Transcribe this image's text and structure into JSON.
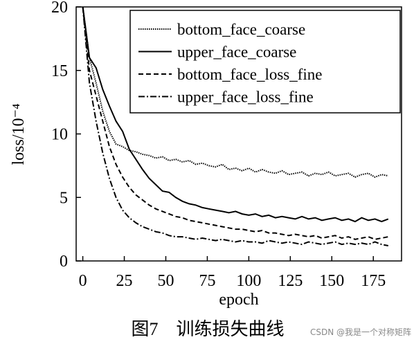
{
  "chart_data": {
    "type": "line",
    "x_label": "epoch",
    "y_label": "loss/10⁻⁴",
    "caption": "图7　训练损失曲线",
    "watermark": "CSDN @我是一个对称矩阵",
    "x": [
      0,
      4,
      8,
      12,
      16,
      20,
      24,
      28,
      32,
      36,
      40,
      44,
      48,
      52,
      56,
      60,
      64,
      68,
      72,
      76,
      80,
      84,
      88,
      92,
      96,
      100,
      104,
      108,
      112,
      116,
      120,
      124,
      128,
      132,
      136,
      140,
      144,
      148,
      152,
      156,
      160,
      164,
      168,
      172,
      176,
      180,
      184
    ],
    "series": [
      {
        "name": "bottom_face_coarse",
        "color": "#000000",
        "linestyle": "dotted",
        "values": [
          20,
          16,
          14,
          11.8,
          10.2,
          9.2,
          9.0,
          8.7,
          8.6,
          8.4,
          8.3,
          8.1,
          8.2,
          7.9,
          8.0,
          7.8,
          7.9,
          7.6,
          7.7,
          7.5,
          7.4,
          7.6,
          7.2,
          7.3,
          7.1,
          7.3,
          7.0,
          7.2,
          7.0,
          6.9,
          7.1,
          6.8,
          6.9,
          7.0,
          6.7,
          6.9,
          6.8,
          7.0,
          6.7,
          6.8,
          6.9,
          6.6,
          6.8,
          6.9,
          6.6,
          6.8,
          6.7
        ]
      },
      {
        "name": "upper_face_coarse",
        "color": "#000000",
        "linestyle": "solid",
        "values": [
          20,
          16,
          15.2,
          13.5,
          12.2,
          11,
          10.2,
          8.8,
          8,
          7.2,
          6.5,
          6,
          5.5,
          5.4,
          5.0,
          4.7,
          4.5,
          4.4,
          4.2,
          4.1,
          4.0,
          3.9,
          3.8,
          3.9,
          3.7,
          3.6,
          3.7,
          3.5,
          3.6,
          3.4,
          3.5,
          3.4,
          3.3,
          3.5,
          3.3,
          3.4,
          3.2,
          3.3,
          3.4,
          3.2,
          3.3,
          3.1,
          3.4,
          3.2,
          3.3,
          3.1,
          3.3
        ]
      },
      {
        "name": "bottom_face_loss_fine",
        "color": "#000000",
        "linestyle": "dashed",
        "values": [
          20,
          15,
          13,
          11,
          9,
          7.6,
          6.6,
          5.8,
          5.2,
          4.8,
          4.4,
          4.1,
          3.9,
          3.7,
          3.5,
          3.4,
          3.2,
          3.1,
          3.0,
          2.9,
          2.8,
          2.7,
          2.6,
          2.5,
          2.5,
          2.4,
          2.3,
          2.4,
          2.2,
          2.2,
          2.1,
          2.0,
          2.1,
          2.0,
          1.9,
          2.0,
          1.8,
          1.9,
          2.0,
          1.8,
          1.9,
          1.7,
          1.8,
          1.9,
          1.7,
          1.8,
          1.9
        ]
      },
      {
        "name": "upper_face_loss_fine",
        "color": "#000000",
        "linestyle": "dashdot",
        "values": [
          20,
          14,
          11,
          8.5,
          6.5,
          5.0,
          4.0,
          3.4,
          3.0,
          2.7,
          2.5,
          2.3,
          2.2,
          2.0,
          1.9,
          1.9,
          1.8,
          1.7,
          1.8,
          1.7,
          1.6,
          1.7,
          1.6,
          1.5,
          1.6,
          1.5,
          1.5,
          1.4,
          1.6,
          1.5,
          1.4,
          1.5,
          1.4,
          1.3,
          1.5,
          1.4,
          1.3,
          1.4,
          1.5,
          1.3,
          1.4,
          1.3,
          1.4,
          1.3,
          1.5,
          1.3,
          1.2
        ]
      }
    ],
    "xlim": [
      -4,
      192
    ],
    "ylim": [
      0,
      20
    ],
    "xticks": [
      0,
      25,
      50,
      75,
      100,
      125,
      150,
      175
    ],
    "yticks": [
      0,
      5,
      10,
      15,
      20
    ],
    "legend": "upper right"
  }
}
